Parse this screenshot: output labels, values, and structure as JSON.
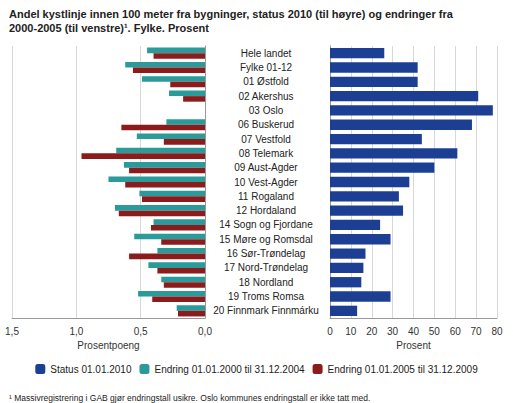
{
  "title": "Andel kystlinje innen 100 meter fra bygninger, status 2010 (til høyre) og endringer fra 2000-2005 (til venstre)¹. Fylke. Prosent",
  "footnote": "¹ Massivregistrering i GAB gjør endringstall usikre. Oslo kommunes endringstall er ikke tatt med.",
  "legend": "bottom",
  "chart_data": [
    {
      "type": "bar",
      "orientation": "horizontal",
      "grid": true,
      "xlabel": "Prosent",
      "xlim": [
        0,
        80
      ],
      "xticks": [
        0,
        10,
        20,
        30,
        40,
        50,
        60,
        70,
        80
      ],
      "categories": [
        "Hele landet",
        "Fylke 01-12",
        "01 Østfold",
        "02 Akershus",
        "03 Oslo",
        "06 Buskerud",
        "07 Vestfold",
        "08 Telemark",
        "09 Aust-Agder",
        "10 Vest-Agder",
        "11 Rogaland",
        "12 Hordaland",
        "14 Sogn og Fjordane",
        "15 Møre og Romsdal",
        "16 Sør-Trøndelag",
        "17 Nord-Trøndelag",
        "18 Nordland",
        "19 Troms Romsa",
        "20 Finnmark Finnmárku"
      ],
      "series": [
        {
          "name": "Status 01.01.2010",
          "color": "#1c3f94",
          "values": [
            26,
            42,
            42,
            71,
            78,
            68,
            44,
            61,
            50,
            38,
            33,
            35,
            24,
            29,
            17,
            16,
            15,
            29,
            13
          ]
        }
      ]
    },
    {
      "type": "bar",
      "orientation": "horizontal",
      "grid": true,
      "xlabel": "Prosentpoeng",
      "xlim": [
        1.5,
        0
      ],
      "xticks": [
        {
          "value": 0,
          "label": "0,0"
        },
        {
          "value": 0.5,
          "label": "0,5"
        },
        {
          "value": 1,
          "label": "1,0"
        },
        {
          "value": 1.5,
          "label": "1,5"
        }
      ],
      "categories": [
        "Hele landet",
        "Fylke 01-12",
        "01 Østfold",
        "02 Akershus",
        "03 Oslo",
        "06 Buskerud",
        "07 Vestfold",
        "08 Telemark",
        "09 Aust-Agder",
        "10 Vest-Agder",
        "11 Rogaland",
        "12 Hordaland",
        "14 Sogn og Fjordane",
        "15 Møre og Romsdal",
        "16 Sør-Trøndelag",
        "17 Nord-Trøndelag",
        "18 Nordland",
        "19 Troms Romsa",
        "20 Finnmark Finnmárku"
      ],
      "series": [
        {
          "name": "Endring 01.01.2000 til 31.12.2004",
          "color": "#2a9a9a",
          "values": [
            0.45,
            0.62,
            0.49,
            0.28,
            null,
            0.3,
            0.53,
            0.69,
            0.63,
            0.75,
            0.51,
            0.7,
            0.4,
            0.55,
            0.37,
            0.44,
            0.34,
            0.52,
            0.22
          ]
        },
        {
          "name": "Endring 01.01.2005 til 31.12.2009",
          "color": "#8c1c1c",
          "values": [
            0.4,
            0.56,
            0.27,
            0.17,
            null,
            0.65,
            0.32,
            0.96,
            0.59,
            0.62,
            0.49,
            0.67,
            0.42,
            0.34,
            0.59,
            0.37,
            0.32,
            0.41,
            0.21
          ]
        }
      ]
    }
  ]
}
